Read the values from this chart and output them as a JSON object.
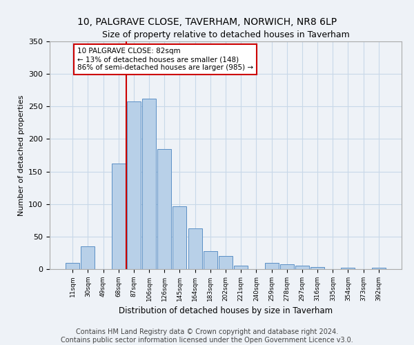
{
  "title": "10, PALGRAVE CLOSE, TAVERHAM, NORWICH, NR8 6LP",
  "subtitle": "Size of property relative to detached houses in Taverham",
  "xlabel": "Distribution of detached houses by size in Taverham",
  "ylabel": "Number of detached properties",
  "categories": [
    "11sqm",
    "30sqm",
    "49sqm",
    "68sqm",
    "87sqm",
    "106sqm",
    "126sqm",
    "145sqm",
    "164sqm",
    "183sqm",
    "202sqm",
    "221sqm",
    "240sqm",
    "259sqm",
    "278sqm",
    "297sqm",
    "316sqm",
    "335sqm",
    "354sqm",
    "373sqm",
    "392sqm"
  ],
  "values": [
    10,
    35,
    0,
    162,
    258,
    262,
    185,
    96,
    63,
    28,
    20,
    5,
    0,
    10,
    7,
    5,
    3,
    0,
    2,
    0,
    2
  ],
  "bar_color": "#b8d0e8",
  "bar_edge_color": "#5a8fc5",
  "grid_color": "#c8d8e8",
  "background_color": "#eef2f7",
  "vline_color": "#cc0000",
  "annotation_text": "10 PALGRAVE CLOSE: 82sqm\n← 13% of detached houses are smaller (148)\n86% of semi-detached houses are larger (985) →",
  "annotation_box_color": "#ffffff",
  "annotation_box_edge": "#cc0000",
  "ylim": [
    0,
    350
  ],
  "yticks": [
    0,
    50,
    100,
    150,
    200,
    250,
    300,
    350
  ],
  "footer1": "Contains HM Land Registry data © Crown copyright and database right 2024.",
  "footer2": "Contains public sector information licensed under the Open Government Licence v3.0.",
  "title_fontsize": 10,
  "subtitle_fontsize": 9,
  "footer_fontsize": 7
}
